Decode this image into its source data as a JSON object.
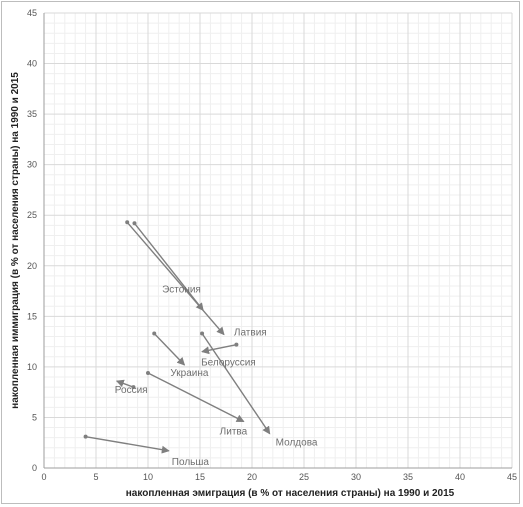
{
  "chart_data": {
    "type": "scatter",
    "xlabel": "накопленная эмиграция (в % от населения страны) на 1990 и 2015",
    "ylabel": "накопленная иммиграция (в % от населения страны)  на 1990 и 2015",
    "xlim": [
      0,
      45
    ],
    "ylim": [
      0,
      45
    ],
    "xticks": [
      "0",
      "5",
      "10",
      "15",
      "20",
      "25",
      "30",
      "35",
      "40",
      "45"
    ],
    "yticks": [
      "0",
      "5",
      "10",
      "15",
      "20",
      "25",
      "30",
      "35",
      "40",
      "45"
    ],
    "grid": true,
    "colors": {
      "series": "#7f7f7f",
      "grid_major": "#d9d9d9",
      "grid_minor": "#efefef",
      "axis": "#9e9e9e"
    },
    "series": [
      {
        "label": "Эстония",
        "from": [
          8.7,
          24.2
        ],
        "to": [
          15.3,
          15.6
        ]
      },
      {
        "label": "Латвия",
        "from": [
          8.0,
          24.3
        ],
        "to": [
          17.3,
          13.2
        ]
      },
      {
        "label": "Молдова",
        "from": [
          15.2,
          13.3
        ],
        "to": [
          21.7,
          3.4
        ]
      },
      {
        "label": "Белоруссия",
        "from": [
          18.5,
          12.2
        ],
        "to": [
          15.2,
          11.5
        ]
      },
      {
        "label": "Украина",
        "from": [
          10.6,
          13.3
        ],
        "to": [
          13.5,
          10.2
        ]
      },
      {
        "label": "Россия",
        "from": [
          8.6,
          8.0
        ],
        "to": [
          7.0,
          8.6
        ]
      },
      {
        "label": "Литва",
        "from": [
          10.0,
          9.4
        ],
        "to": [
          19.2,
          4.6
        ]
      },
      {
        "label": "Польша",
        "from": [
          4.0,
          3.1
        ],
        "to": [
          12.0,
          1.7
        ]
      }
    ]
  }
}
